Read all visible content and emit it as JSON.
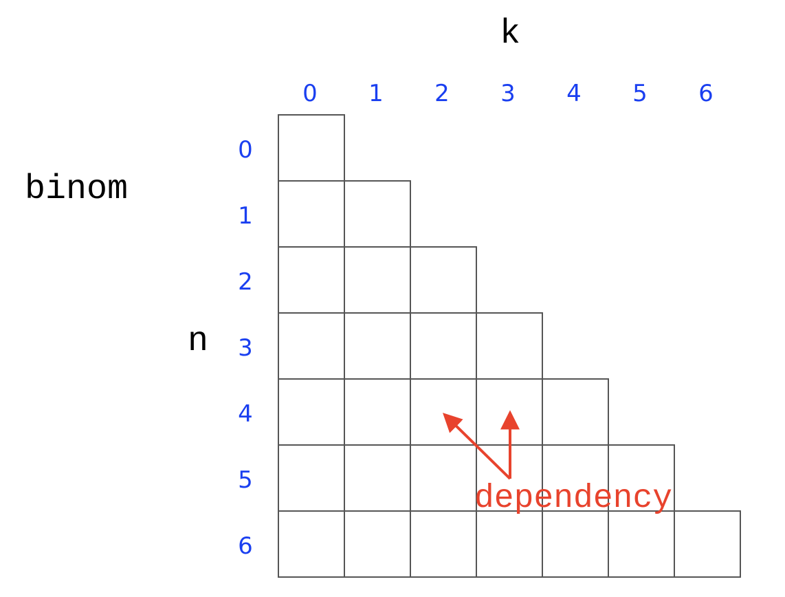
{
  "table_name": "binom",
  "column_axis_label": "k",
  "row_axis_label": "n",
  "column_indices": [
    "0",
    "1",
    "2",
    "3",
    "4",
    "5",
    "6"
  ],
  "row_indices": [
    "0",
    "1",
    "2",
    "3",
    "4",
    "5",
    "6"
  ],
  "table_shape": "lower-triangular",
  "annotation": {
    "text": "dependency",
    "points_to": [
      {
        "row": 4,
        "col": 2
      },
      {
        "row": 4,
        "col": 3
      }
    ]
  },
  "colors": {
    "index_labels": "#1a3ff0",
    "grid_lines": "#555555",
    "annotation": "#e8432d",
    "axis_labels": "#000000"
  }
}
